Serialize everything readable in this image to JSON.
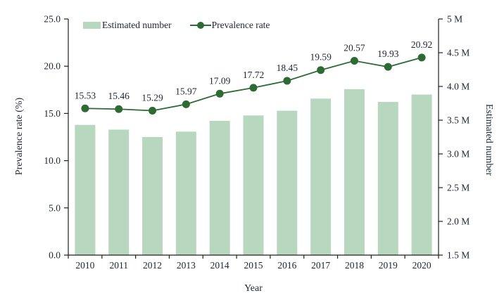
{
  "figure": {
    "xlabel": "Year",
    "ylabel_left": "Prevalence rate (%)",
    "ylabel_right": "Estimated number"
  },
  "legend": {
    "items": [
      {
        "label": "Estimated number",
        "marker": "bar-swatch"
      },
      {
        "label": "Prevalence rate",
        "marker": "line-dot-swatch"
      }
    ]
  },
  "chart_data": {
    "type": "bar",
    "subtype": "bar+line combo, dual y-axes",
    "categories": [
      "2010",
      "2011",
      "2012",
      "2013",
      "2014",
      "2015",
      "2016",
      "2017",
      "2018",
      "2019",
      "2020"
    ],
    "series": [
      {
        "name": "Estimated number",
        "type": "bar",
        "axis": "right",
        "unit": "M",
        "values": [
          3.43,
          3.36,
          3.25,
          3.33,
          3.49,
          3.57,
          3.64,
          3.82,
          3.96,
          3.77,
          3.88
        ]
      },
      {
        "name": "Prevalence rate",
        "type": "line",
        "axis": "left",
        "unit": "%",
        "values": [
          15.53,
          15.46,
          15.29,
          15.97,
          17.09,
          17.72,
          18.45,
          19.59,
          20.57,
          19.93,
          20.92
        ],
        "data_labels": [
          "15.53",
          "15.46",
          "15.29",
          "15.97",
          "17.09",
          "17.72",
          "18.45",
          "19.59",
          "20.57",
          "19.93",
          "20.92"
        ]
      }
    ],
    "title": "",
    "xlabel": "Year",
    "ylabel_left": "Prevalence rate (%)",
    "ylabel_right": "Estimated number",
    "left_axis": {
      "min": 0,
      "max": 25,
      "tick_labels": [
        "0.0",
        "5.0",
        "10.0",
        "15.0",
        "20.0",
        "25.0"
      ]
    },
    "right_axis": {
      "min": 1.5,
      "max": 5,
      "tick_labels": [
        "1.5 M",
        "2.0 M",
        "2.5 M",
        "3.0 M",
        "3.5 M",
        "4.0 M",
        "4.5 M",
        "5 M"
      ]
    },
    "legend_position": "top-inside",
    "grid": false,
    "colors": {
      "bar_fill": "#b7d8bf",
      "line": "#2d6a34",
      "text": "#1b2533",
      "axis": "#1f1f1f"
    }
  }
}
